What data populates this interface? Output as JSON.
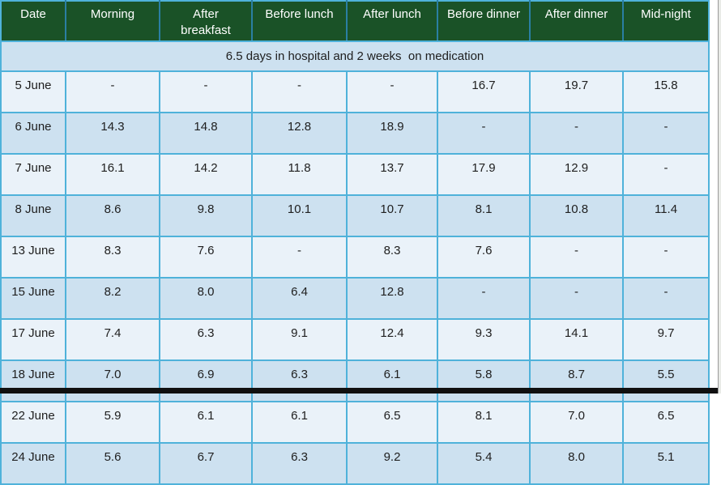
{
  "chart_data": {
    "type": "table",
    "banner": "6.5 days in hospital and 2 weeks  on medication",
    "columns": [
      "Date",
      "Morning",
      "After\nbreakfast",
      "Before lunch",
      "After lunch",
      "Before dinner",
      "After dinner",
      "Mid-night"
    ],
    "rows": [
      {
        "date": "5 June",
        "values": [
          "-",
          "-",
          "-",
          "-",
          "16.7",
          "19.7",
          "15.8"
        ]
      },
      {
        "date": "6 June",
        "values": [
          "14.3",
          "14.8",
          "12.8",
          "18.9",
          "-",
          "-",
          "-"
        ]
      },
      {
        "date": "7 June",
        "values": [
          "16.1",
          "14.2",
          "11.8",
          "13.7",
          "17.9",
          "12.9",
          "-"
        ]
      },
      {
        "date": "8 June",
        "values": [
          "8.6",
          "9.8",
          "10.1",
          "10.7",
          "8.1",
          "10.8",
          "11.4"
        ]
      },
      {
        "date": "13 June",
        "values": [
          "8.3",
          "7.6",
          "-",
          "8.3",
          "7.6",
          "-",
          "-"
        ]
      },
      {
        "date": "15 June",
        "values": [
          "8.2",
          "8.0",
          "6.4",
          "12.8",
          "-",
          "-",
          "-"
        ]
      },
      {
        "date": "17 June",
        "values": [
          "7.4",
          "6.3",
          "9.1",
          "12.4",
          "9.3",
          "14.1",
          "9.7"
        ]
      },
      {
        "date": "18 June",
        "values": [
          "7.0",
          "6.9",
          "6.3",
          "6.1",
          "5.8",
          "8.7",
          "5.5"
        ]
      },
      {
        "date": "22 June",
        "values": [
          "5.9",
          "6.1",
          "6.1",
          "6.5",
          "8.1",
          "7.0",
          "6.5"
        ]
      },
      {
        "date": "24 June",
        "values": [
          "5.6",
          "6.7",
          "6.3",
          "9.2",
          "5.4",
          "8.0",
          "5.1"
        ]
      }
    ]
  },
  "colors": {
    "header_green": "#1a5227",
    "header_text": "#ffffff",
    "row_light": "#eaf2f9",
    "row_dark": "#cde1f0",
    "banner_bg": "#cde1f0",
    "border_blue": "#4fb2da",
    "header_divider": "#2a7fa3",
    "body_text": "#202020",
    "bottom_bar": "#101010"
  }
}
